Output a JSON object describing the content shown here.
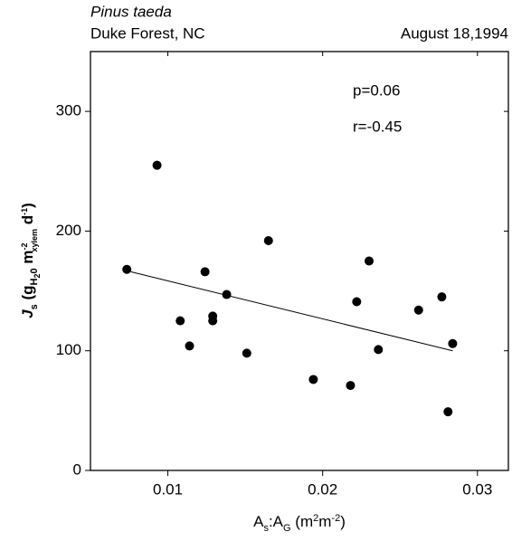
{
  "chart_data": {
    "type": "scatter",
    "title": "Pinus taeda",
    "subtitle": "Duke Forest, NC",
    "date": "August 18,1994",
    "annotations": [
      "p=0.06",
      "r=-0.45"
    ],
    "ylabel_parts": [
      "J",
      "s",
      " (g",
      "H",
      "2",
      "0",
      " m",
      "-2",
      "xylem",
      " d",
      "-1",
      ")"
    ],
    "xlabel_parts": [
      "A",
      "s",
      ":A",
      "G",
      " (m",
      "2",
      "m",
      "-2",
      ")"
    ],
    "x": [
      0.00735,
      0.0093,
      0.0108,
      0.0114,
      0.0124,
      0.0129,
      0.0129,
      0.0138,
      0.0151,
      0.0165,
      0.0194,
      0.0218,
      0.0222,
      0.023,
      0.0236,
      0.0262,
      0.0277,
      0.0281,
      0.0284
    ],
    "series": [
      {
        "color": "#000000",
        "values": [
          168,
          255,
          125,
          104,
          166,
          129,
          125,
          147,
          98,
          192,
          76,
          71,
          141,
          175,
          101,
          134,
          145,
          49,
          106
        ]
      }
    ],
    "trendline": {
      "x": [
        0.0076,
        0.0284
      ],
      "y": [
        166,
        100
      ]
    },
    "xlim": [
      0.005,
      0.032
    ],
    "xticks": [
      0.01,
      0.02,
      0.03
    ],
    "ylim": [
      0,
      350
    ],
    "yticks": [
      0,
      100,
      200,
      300
    ],
    "grid": false
  }
}
